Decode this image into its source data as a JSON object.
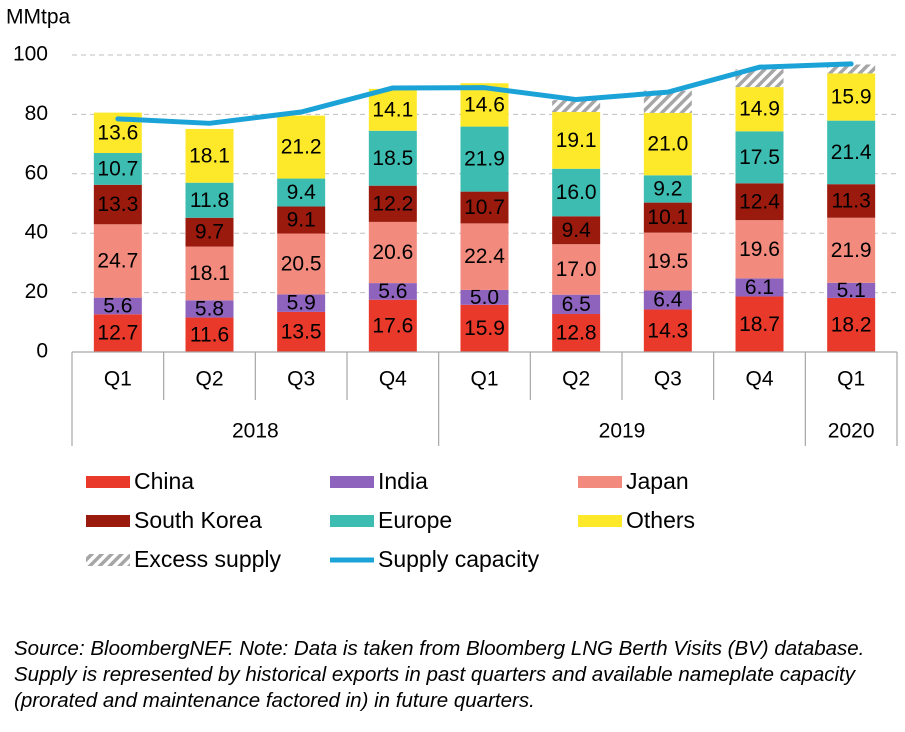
{
  "chart_data": {
    "type": "bar",
    "stacked": true,
    "ylabel": "MMtpa",
    "ylim": [
      0,
      100
    ],
    "yticks": [
      0,
      20,
      40,
      60,
      80,
      100
    ],
    "grid": true,
    "legend_position": "bottom",
    "categories": [
      "Q1",
      "Q2",
      "Q3",
      "Q4",
      "Q1",
      "Q2",
      "Q3",
      "Q4",
      "Q1"
    ],
    "year_groups": [
      {
        "label": "2018",
        "count": 4
      },
      {
        "label": "2019",
        "count": 4
      },
      {
        "label": "2020",
        "count": 1
      }
    ],
    "series": [
      {
        "name": "China",
        "color": "#e8392b",
        "values": [
          12.7,
          11.6,
          13.5,
          17.6,
          15.9,
          12.8,
          14.3,
          18.7,
          18.2
        ]
      },
      {
        "name": "India",
        "color": "#8e63be",
        "values": [
          5.6,
          5.8,
          5.9,
          5.6,
          5.0,
          6.5,
          6.4,
          6.1,
          5.1
        ]
      },
      {
        "name": "Japan",
        "color": "#f28b7e",
        "values": [
          24.7,
          18.1,
          20.5,
          20.6,
          22.4,
          17.0,
          19.5,
          19.6,
          21.9
        ]
      },
      {
        "name": "South Korea",
        "color": "#9b1a0e",
        "values": [
          13.3,
          9.7,
          9.1,
          12.2,
          10.7,
          9.4,
          10.1,
          12.4,
          11.3
        ]
      },
      {
        "name": "Europe",
        "color": "#3dbdb1",
        "values": [
          10.7,
          11.8,
          9.4,
          18.5,
          21.9,
          16.0,
          9.2,
          17.5,
          21.4
        ]
      },
      {
        "name": "Others",
        "color": "#fde92a",
        "values": [
          13.6,
          18.1,
          21.2,
          14.1,
          14.6,
          19.1,
          21.0,
          14.9,
          15.9
        ]
      }
    ],
    "excess_supply": {
      "name": "Excess supply",
      "color": "#a6a6a6",
      "values": [
        0,
        0,
        0,
        0,
        0,
        4.0,
        7.5,
        6.0,
        3.0
      ]
    },
    "supply_capacity": {
      "name": "Supply capacity",
      "color": "#1ba3d8",
      "values": [
        78.5,
        77.0,
        80.8,
        88.9,
        89.0,
        85.0,
        87.5,
        95.9,
        97.0
      ]
    },
    "legend": [
      "China",
      "India",
      "Japan",
      "South Korea",
      "Europe",
      "Others",
      "Excess supply",
      "Supply capacity"
    ]
  },
  "source_note": "Source: BloombergNEF. Note: Data is taken from Bloomberg LNG Berth Visits (BV) database. Supply is represented by historical exports in past quarters and available nameplate capacity (prorated and maintenance factored in) in future quarters."
}
